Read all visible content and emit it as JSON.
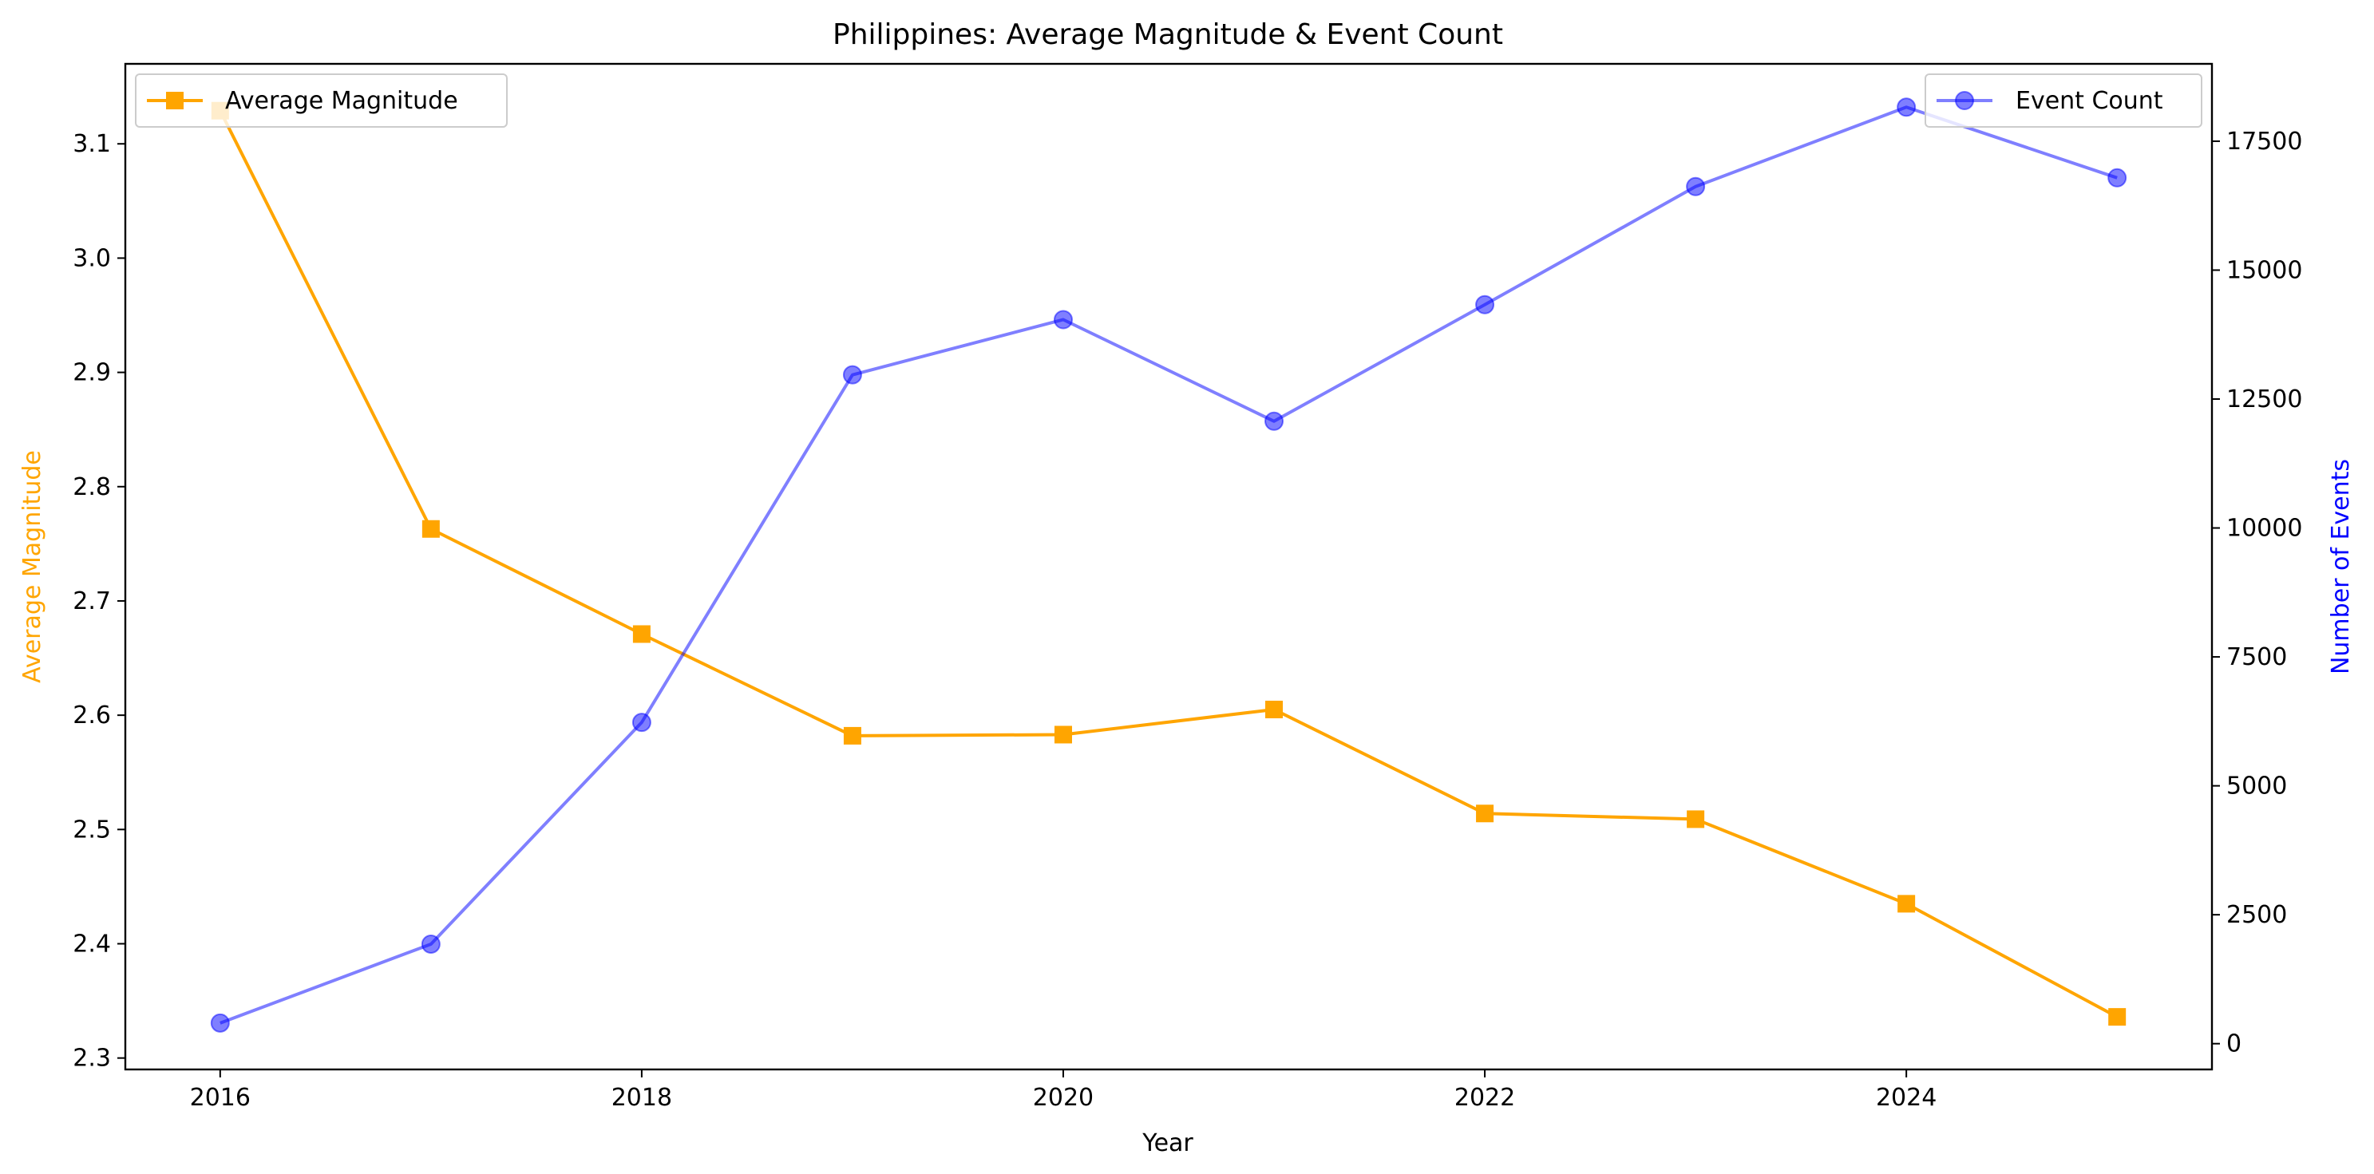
{
  "chart_data": {
    "type": "line",
    "title": "Philippines: Average Magnitude & Event Count",
    "xlabel": "Year",
    "ylabel_left": "Average Magnitude",
    "ylabel_right": "Number of Events",
    "x": [
      2016,
      2017,
      2018,
      2019,
      2020,
      2021,
      2022,
      2023,
      2024,
      2025
    ],
    "xlim": [
      2015.55,
      2025.45
    ],
    "x_ticks": [
      "2016",
      "2018",
      "2020",
      "2022",
      "2024"
    ],
    "ylim_left": [
      2.29,
      3.17
    ],
    "ylim_right": [
      -500,
      19000
    ],
    "y_ticks_left": [
      "2.3",
      "2.4",
      "2.5",
      "2.6",
      "2.7",
      "2.8",
      "2.9",
      "3.0",
      "3.1"
    ],
    "y_ticks_right": [
      "0",
      "2500",
      "5000",
      "7500",
      "10000",
      "12500",
      "15000",
      "17500"
    ],
    "grid": false,
    "series": [
      {
        "name": "Average Magnitude",
        "axis": "left",
        "color": "#ffa500",
        "marker": "square",
        "values": [
          3.129,
          2.763,
          2.671,
          2.582,
          2.583,
          2.605,
          2.514,
          2.509,
          2.435,
          2.336
        ],
        "legend_position": "upper-left"
      },
      {
        "name": "Event Count",
        "axis": "right",
        "color": "#0000ff",
        "marker": "circle",
        "alpha": 0.5,
        "values": [
          400,
          1930,
          6230,
          12970,
          14040,
          12070,
          14330,
          16620,
          18160,
          16790
        ],
        "legend_position": "upper-right"
      }
    ]
  }
}
